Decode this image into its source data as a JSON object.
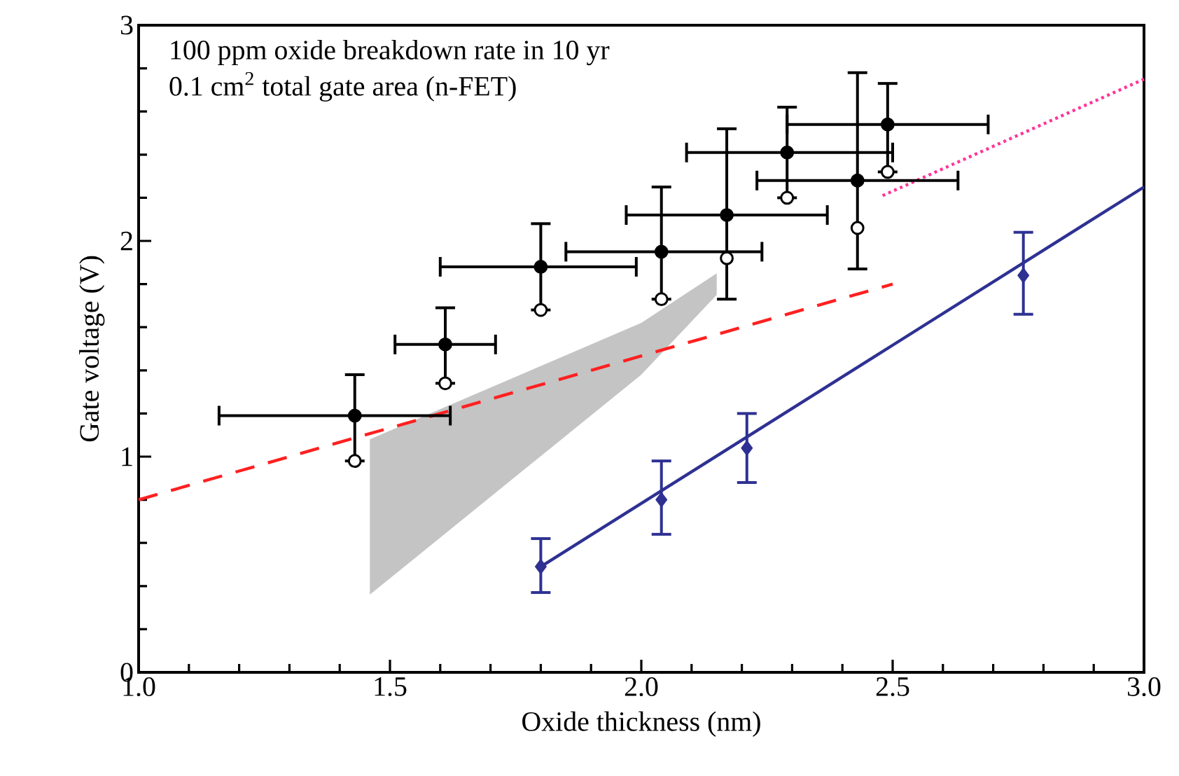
{
  "chart_data": {
    "type": "scatter",
    "xlabel": "Oxide thickness (nm)",
    "ylabel": "Gate voltage (V)",
    "annotations": [
      "100 ppm oxide breakdown rate in 10 yr",
      "0.1 cm$^{2}$ total gate area (n-FET)"
    ],
    "xlim": [
      1.0,
      3.0
    ],
    "ylim": [
      0,
      3
    ],
    "xticks": [
      {
        "value": 1.0,
        "label": "1.0"
      },
      {
        "value": 1.1,
        "label": null
      },
      {
        "value": 1.2,
        "label": null
      },
      {
        "value": 1.3,
        "label": null
      },
      {
        "value": 1.4,
        "label": null
      },
      {
        "value": 1.5,
        "label": "1.5"
      },
      {
        "value": 1.6,
        "label": null
      },
      {
        "value": 1.7,
        "label": null
      },
      {
        "value": 1.8,
        "label": null
      },
      {
        "value": 1.9,
        "label": null
      },
      {
        "value": 2.0,
        "label": "2.0"
      },
      {
        "value": 2.1,
        "label": null
      },
      {
        "value": 2.2,
        "label": null
      },
      {
        "value": 2.3,
        "label": null
      },
      {
        "value": 2.4,
        "label": null
      },
      {
        "value": 2.5,
        "label": "2.5"
      },
      {
        "value": 2.6,
        "label": null
      },
      {
        "value": 2.7,
        "label": null
      },
      {
        "value": 2.8,
        "label": null
      },
      {
        "value": 2.9,
        "label": null
      },
      {
        "value": 3.0,
        "label": "3.0"
      }
    ],
    "yticks": [
      0,
      {
        "value": 0.2,
        "label": null
      },
      {
        "value": 0.4,
        "label": null
      },
      {
        "value": 0.6,
        "label": null
      },
      {
        "value": 0.8,
        "label": null
      },
      1,
      {
        "value": 1.2,
        "label": null
      },
      {
        "value": 1.4,
        "label": null
      },
      {
        "value": 1.6,
        "label": null
      },
      {
        "value": 1.8,
        "label": null
      },
      2,
      {
        "value": 2.2,
        "label": null
      },
      {
        "value": 2.4,
        "label": null
      },
      {
        "value": 2.6,
        "label": null
      },
      {
        "value": 2.8,
        "label": null
      },
      3
    ],
    "series": [
      {
        "type": "line",
        "color": "#c4c4c4",
        "x": [
          1.46,
          2.0,
          2.15
        ],
        "values": [
          null,
          null,
          null
        ],
        "lower": [
          0.36,
          1.38,
          1.75
        ],
        "upper": [
          1.08,
          1.62,
          1.85
        ]
      },
      {
        "type": "line",
        "color": "#ff2020",
        "line_style": "dashed",
        "x": [
          1.0,
          2.5
        ],
        "values": [
          0.8,
          1.8
        ]
      },
      {
        "type": "line",
        "color": "#ff3399",
        "line_style": "dotted",
        "x": [
          2.48,
          3.0
        ],
        "values": [
          2.21,
          2.75
        ]
      },
      {
        "type": "line",
        "color": "#2e3192",
        "line_style": "solid",
        "x": [
          1.8,
          3.0
        ],
        "values": [
          0.49,
          2.25
        ]
      },
      {
        "marker": "circle",
        "color": "#000000",
        "x": [
          1.43,
          1.61,
          1.8,
          2.04,
          2.17,
          2.29,
          2.43,
          2.49
        ],
        "values": [
          1.19,
          1.52,
          1.88,
          1.95,
          2.12,
          2.41,
          2.28,
          2.54
        ],
        "errors": [
          [
            0.98,
            1.38
          ],
          [
            1.34,
            1.69
          ],
          [
            1.68,
            2.08
          ],
          [
            1.73,
            2.25
          ],
          [
            1.73,
            2.52
          ],
          [
            2.2,
            2.62
          ],
          [
            1.87,
            2.78
          ],
          [
            2.32,
            2.73
          ]
        ],
        "xerrors": [
          [
            1.16,
            1.62
          ],
          [
            1.51,
            1.71
          ],
          [
            1.6,
            1.99
          ],
          [
            1.85,
            2.24
          ],
          [
            1.97,
            2.37
          ],
          [
            2.09,
            2.5
          ],
          [
            2.23,
            2.63
          ],
          [
            2.29,
            2.69
          ]
        ]
      },
      {
        "marker": "circle",
        "color": "#ffffff",
        "x": [
          1.43,
          1.61,
          1.8,
          2.04,
          2.17,
          2.29,
          2.43,
          2.49
        ],
        "values": [
          0.98,
          1.34,
          1.68,
          1.73,
          1.92,
          2.2,
          2.06,
          2.32
        ]
      },
      {
        "marker": "diamond",
        "color": "#2e3192",
        "x": [
          1.8,
          2.04,
          2.21,
          2.76
        ],
        "values": [
          0.49,
          0.8,
          1.04,
          1.84
        ],
        "errors": [
          [
            0.37,
            0.62
          ],
          [
            0.64,
            0.98
          ],
          [
            0.88,
            1.2
          ],
          [
            1.66,
            2.04
          ]
        ]
      }
    ]
  }
}
